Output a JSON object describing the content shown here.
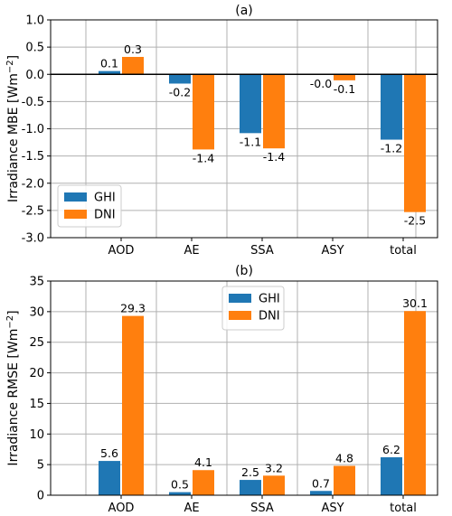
{
  "chart_data": [
    {
      "type": "bar",
      "title": "(a)",
      "ylabel": "Irradiance MBE [Wm",
      "ylabel_sup": "−2",
      "ylabel_end": "]",
      "ylim": [
        -3.0,
        1.0
      ],
      "yticks": [
        -3.0,
        -2.5,
        -2.0,
        -1.5,
        -1.0,
        -0.5,
        0.0,
        0.5,
        1.0
      ],
      "ytick_labels": [
        "-3.0",
        "-2.5",
        "-2.0",
        "-1.5",
        "-1.0",
        "-0.5",
        "0.0",
        "0.5",
        "1.0"
      ],
      "categories": [
        "AOD",
        "AE",
        "SSA",
        "ASY",
        "total"
      ],
      "series": [
        {
          "name": "GHI",
          "color": "#1f77b4",
          "values": [
            0.06,
            -0.17,
            -1.08,
            -0.01,
            -1.2
          ],
          "labels": [
            "0.1",
            "-0.2",
            "-1.1",
            "-0.0",
            "-1.2"
          ]
        },
        {
          "name": "DNI",
          "color": "#ff7f0e",
          "values": [
            0.32,
            -1.38,
            -1.36,
            -0.11,
            -2.53
          ],
          "labels": [
            "0.3",
            "-1.4",
            "-1.4",
            "-0.1",
            "-2.5"
          ]
        }
      ],
      "grid": true,
      "zero_line": true,
      "legend_placement": "lower-left"
    },
    {
      "type": "bar",
      "title": "(b)",
      "ylabel": "Irradiance RMSE [Wm",
      "ylabel_sup": "−2",
      "ylabel_end": "]",
      "ylim": [
        0,
        35
      ],
      "yticks": [
        0,
        5,
        10,
        15,
        20,
        25,
        30,
        35
      ],
      "ytick_labels": [
        "0",
        "5",
        "10",
        "15",
        "20",
        "25",
        "30",
        "35"
      ],
      "categories": [
        "AOD",
        "AE",
        "SSA",
        "ASY",
        "total"
      ],
      "series": [
        {
          "name": "GHI",
          "color": "#1f77b4",
          "values": [
            5.6,
            0.5,
            2.5,
            0.7,
            6.2
          ],
          "labels": [
            "5.6",
            "0.5",
            "2.5",
            "0.7",
            "6.2"
          ]
        },
        {
          "name": "DNI",
          "color": "#ff7f0e",
          "values": [
            29.3,
            4.1,
            3.2,
            4.8,
            30.1
          ],
          "labels": [
            "29.3",
            "4.1",
            "3.2",
            "4.8",
            "30.1"
          ]
        }
      ],
      "grid": true,
      "zero_line": false,
      "legend_placement": "upper-center"
    }
  ]
}
